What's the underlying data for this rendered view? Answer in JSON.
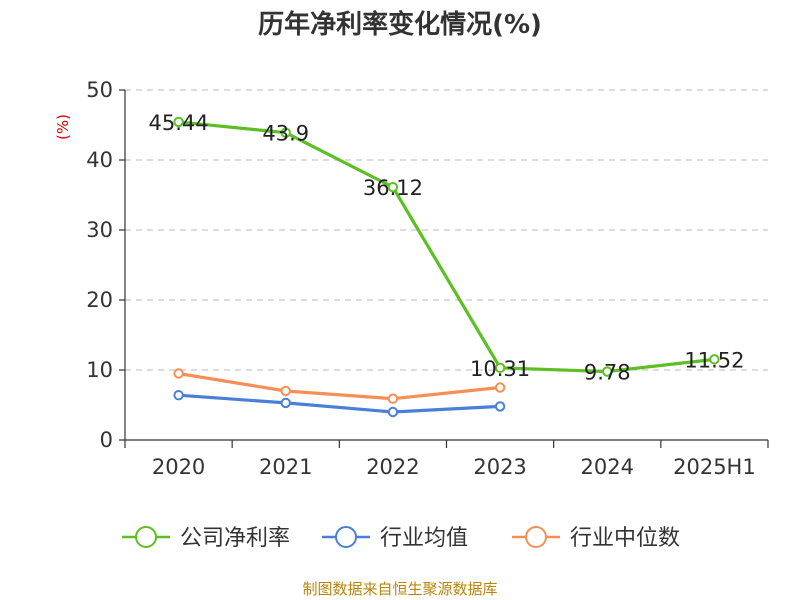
{
  "chart_data": {
    "type": "line",
    "title": "历年净利率变化情况(%)",
    "ylabel": "(%)",
    "xlabel": "",
    "categories": [
      "2020",
      "2021",
      "2022",
      "2023",
      "2024",
      "2025H1"
    ],
    "ylim": [
      0,
      50
    ],
    "yticks": [
      0,
      10,
      20,
      30,
      40,
      50
    ],
    "grid": true,
    "legend_position": "bottom",
    "series": [
      {
        "name": "公司净利率",
        "color": "#5cbf23",
        "values": [
          45.44,
          43.9,
          36.12,
          10.31,
          9.78,
          11.52
        ],
        "labels": [
          "45.44",
          "43.9",
          "36.12",
          "10.31",
          "9.78",
          "11.52"
        ]
      },
      {
        "name": "行业均值",
        "color": "#4a7fd8",
        "values": [
          6.4,
          5.3,
          4.0,
          4.8,
          null,
          null
        ]
      },
      {
        "name": "行业中位数",
        "color": "#f78f55",
        "values": [
          9.5,
          7.0,
          5.9,
          7.5,
          null,
          null
        ]
      }
    ]
  },
  "source_text": "制图数据来自恒生聚源数据库"
}
